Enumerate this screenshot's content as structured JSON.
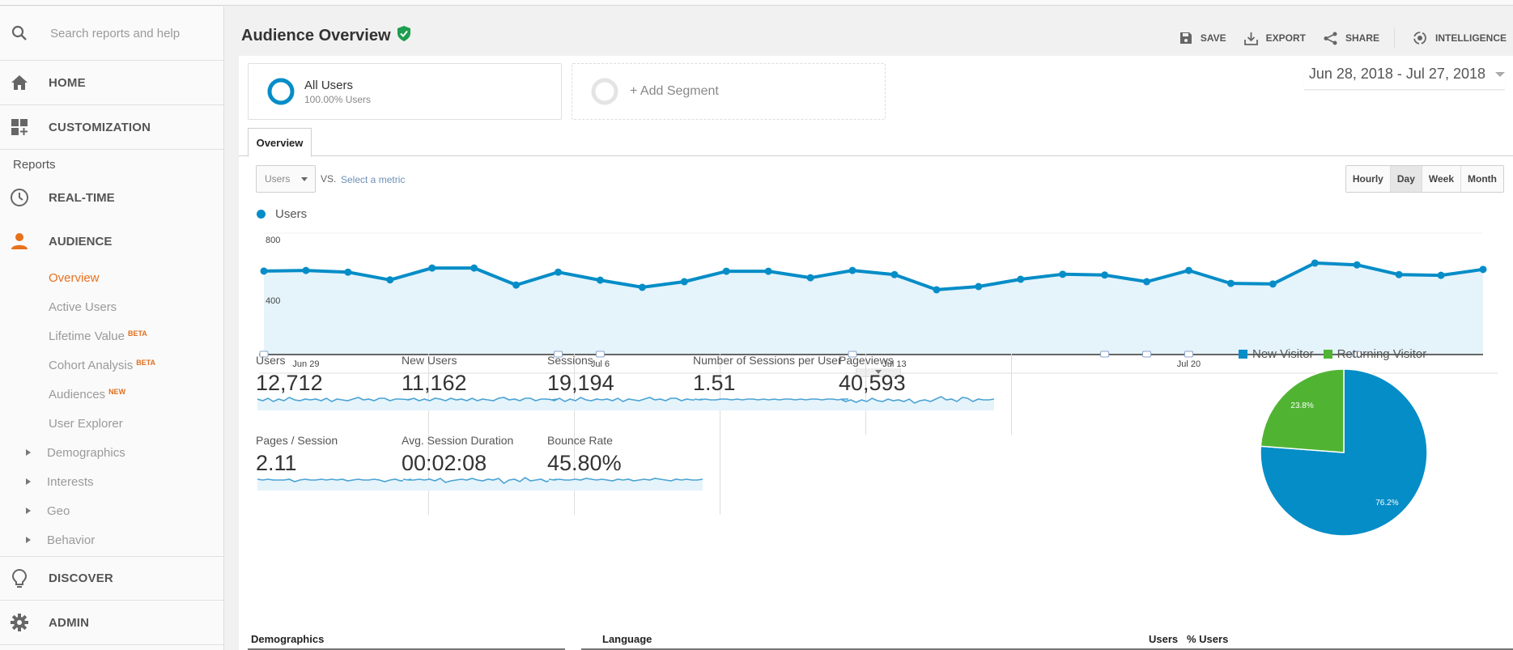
{
  "sidebar": {
    "search_placeholder": "Search reports and help",
    "home": "HOME",
    "customization": "CUSTOMIZATION",
    "reports_label": "Reports",
    "realtime": "REAL-TIME",
    "audience": "AUDIENCE",
    "audience_items": [
      {
        "label": "Overview",
        "badge": "",
        "active": true
      },
      {
        "label": "Active Users",
        "badge": ""
      },
      {
        "label": "Lifetime Value",
        "badge": "BETA"
      },
      {
        "label": "Cohort Analysis",
        "badge": "BETA"
      },
      {
        "label": "Audiences",
        "badge": "NEW"
      },
      {
        "label": "User Explorer",
        "badge": ""
      }
    ],
    "expandable_items": [
      "Demographics",
      "Interests",
      "Geo",
      "Behavior"
    ],
    "discover": "DISCOVER",
    "admin": "ADMIN"
  },
  "header": {
    "title": "Audience Overview",
    "actions": {
      "save": "SAVE",
      "export": "EXPORT",
      "share": "SHARE",
      "intelligence": "INTELLIGENCE"
    }
  },
  "segments": {
    "all_users": {
      "name": "All Users",
      "detail": "100.00% Users"
    },
    "add_segment": "+ Add Segment"
  },
  "date_range": "Jun 28, 2018 - Jul 27, 2018",
  "tabs": [
    "Overview"
  ],
  "metric_selector": {
    "value": "Users",
    "vs": "VS.",
    "select_metric": "Select a metric"
  },
  "granularity": {
    "options": [
      "Hourly",
      "Day",
      "Week",
      "Month"
    ],
    "selected": "Day"
  },
  "colors": {
    "accent_blue": "#058dc7",
    "fill_blue": "#e5f3fb",
    "green": "#50b432",
    "orange": "#e8711c"
  },
  "chart_data": [
    {
      "type": "area",
      "title": "",
      "legend": [
        "Users"
      ],
      "ylabel": "",
      "ytick_labels": [
        "400",
        "800"
      ],
      "ylim": [
        0,
        800
      ],
      "xtick_labels": [
        "Jun 29",
        "Jul 6",
        "Jul 13",
        "Jul 20"
      ],
      "x": [
        "Jun 28",
        "Jun 29",
        "Jun 30",
        "Jul 1",
        "Jul 2",
        "Jul 3",
        "Jul 4",
        "Jul 5",
        "Jul 6",
        "Jul 7",
        "Jul 8",
        "Jul 9",
        "Jul 10",
        "Jul 11",
        "Jul 12",
        "Jul 13",
        "Jul 14",
        "Jul 15",
        "Jul 16",
        "Jul 17",
        "Jul 18",
        "Jul 19",
        "Jul 20",
        "Jul 21",
        "Jul 22",
        "Jul 23",
        "Jul 24",
        "Jul 25",
        "Jul 26",
        "Jul 27"
      ],
      "series": [
        {
          "name": "Users",
          "values": [
            550,
            554,
            543,
            492,
            570,
            570,
            458,
            543,
            490,
            443,
            480,
            549,
            549,
            506,
            554,
            527,
            427,
            448,
            496,
            529,
            524,
            480,
            554,
            469,
            465,
            603,
            591,
            527,
            522,
            561
          ]
        }
      ],
      "grid": true
    },
    {
      "type": "pie",
      "legend": [
        "New Visitor",
        "Returning Visitor"
      ],
      "categories": [
        "New Visitor",
        "Returning Visitor"
      ],
      "values": [
        76.2,
        23.8
      ],
      "labels": [
        "76.2%",
        "23.8%"
      ],
      "colors": [
        "#058dc7",
        "#50b432"
      ]
    }
  ],
  "metrics": [
    {
      "name": "Users",
      "value": "12,712"
    },
    {
      "name": "New Users",
      "value": "11,162"
    },
    {
      "name": "Sessions",
      "value": "19,194"
    },
    {
      "name": "Number of Sessions per User",
      "value": "1.51"
    },
    {
      "name": "Pageviews",
      "value": "40,593"
    },
    {
      "name": "Pages / Session",
      "value": "2.11"
    },
    {
      "name": "Avg. Session Duration",
      "value": "00:02:08"
    },
    {
      "name": "Bounce Rate",
      "value": "45.80%"
    }
  ],
  "bottom": {
    "demographics": "Demographics",
    "language": "Language",
    "col_users": "Users",
    "col_pct_users": "% Users"
  }
}
